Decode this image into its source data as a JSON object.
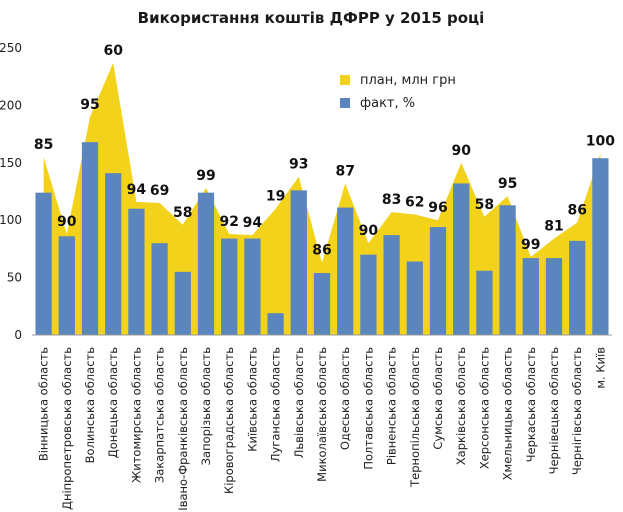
{
  "chart_data": {
    "type": "bar",
    "title": "Використання коштів ДФРР у 2015 році",
    "ylim": [
      0,
      250
    ],
    "yticks": [
      0,
      50,
      100,
      150,
      200,
      250
    ],
    "grid": false,
    "legend_position": "top-right",
    "categories": [
      "Вінницька область",
      "Дніпропетровська область",
      "Волинська область",
      "Донецька область",
      "Житомирська область",
      "Закарпатська область",
      "Івано-Франківська область",
      "Запорізька область",
      "Кіровоградська область",
      "Київська область",
      "Луганська область",
      "Львівська область",
      "Миколаївська область",
      "Одеська область",
      "Полтавська область",
      "Рівненська область",
      "Тернопільська область",
      "Сумська область",
      "Харківська область",
      "Херсонська область",
      "Хмельницька область",
      "Черкаська область",
      "Чернівецька область",
      "Чернігівська область",
      "м. Київ"
    ],
    "series": [
      {
        "name": "план, млн грн",
        "type": "area",
        "color": "#f2d21b",
        "values": [
          155,
          88,
          190,
          237,
          116,
          115,
          96,
          128,
          88,
          87,
          110,
          138,
          63,
          132,
          80,
          107,
          105,
          100,
          150,
          103,
          121,
          68,
          84,
          98,
          158
        ]
      },
      {
        "name": "факт, %",
        "type": "bar",
        "color": "#5b86bd",
        "values": [
          124,
          86,
          168,
          141,
          110,
          80,
          55,
          124,
          84,
          84,
          19,
          126,
          54,
          111,
          70,
          87,
          64,
          94,
          132,
          56,
          113,
          67,
          67,
          82,
          154
        ]
      }
    ],
    "data_labels": [
      "85",
      "90",
      "95",
      "60",
      "94",
      "69",
      "58",
      "99",
      "92",
      "94",
      "19",
      "93",
      "86",
      "87",
      "90",
      "83",
      "62",
      "96",
      "90",
      "58",
      "95",
      "99",
      "81",
      "86",
      "100"
    ]
  }
}
